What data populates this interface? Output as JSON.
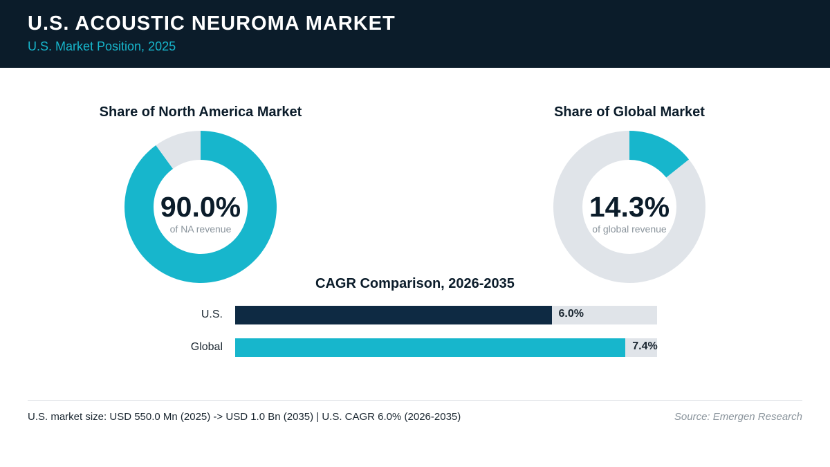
{
  "header": {
    "title": "U.S. ACOUSTIC NEUROMA MARKET",
    "subtitle": "U.S. Market Position, 2025"
  },
  "colors": {
    "header_bg": "#0b1c2a",
    "accent": "#17b6cc",
    "us_bar": "#0e2a43",
    "track": "#e0e4e9",
    "dark_text": "#0b1c2a",
    "muted_text": "#8a949c"
  },
  "chart_data": [
    {
      "type": "pie",
      "variant": "donut",
      "title": "Share of North America Market",
      "center_value": "90.0%",
      "center_label": "of NA revenue",
      "values": [
        90.0,
        10.0
      ],
      "colors": [
        "#17b6cc",
        "#e0e4e9"
      ]
    },
    {
      "type": "pie",
      "variant": "donut",
      "title": "Share of Global Market",
      "center_value": "14.3%",
      "center_label": "of global revenue",
      "values": [
        14.3,
        85.7
      ],
      "colors": [
        "#17b6cc",
        "#e0e4e9"
      ]
    },
    {
      "type": "bar",
      "orientation": "horizontal",
      "title": "CAGR Comparison, 2026-2035",
      "categories": [
        "U.S.",
        "Global"
      ],
      "values": [
        6.0,
        7.4
      ],
      "value_labels": [
        "6.0%",
        "7.4%"
      ],
      "colors": [
        "#0e2a43",
        "#17b6cc"
      ],
      "xlim": [
        0,
        8.0
      ]
    }
  ],
  "footer": {
    "note": "U.S. market size: USD 550.0 Mn (2025) -> USD 1.0 Bn (2035)  |  U.S. CAGR 6.0% (2026-2035)",
    "source": "Source: Emergen Research"
  }
}
